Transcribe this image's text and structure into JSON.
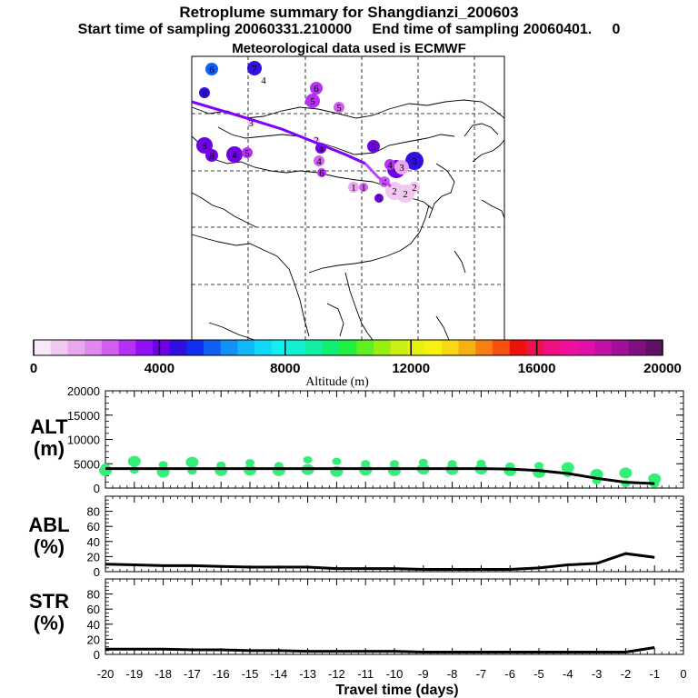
{
  "title": {
    "line1": "Retroplume summary for Shangdianzi_200603",
    "line2": "Start time of sampling 20060331.210000     End time of sampling 20060401.     0",
    "line3": "Meteorological data used is ECMWF"
  },
  "colors": {
    "trajectory": "#7f00ff",
    "trajectory_tail": "#c040ff",
    "scatter_points": "#33ee77",
    "line": "#000000"
  },
  "colorbar": {
    "label": "Altitude (m)",
    "range": [
      0,
      20000
    ],
    "ticks": [
      "0",
      "4000",
      "8000",
      "12000",
      "16000",
      "20000"
    ],
    "colors": [
      "#f8e8f8",
      "#f0c8f0",
      "#e8a8f0",
      "#e088f0",
      "#d060f0",
      "#b830f8",
      "#9010f8",
      "#7000e8",
      "#3010e0",
      "#1030f0",
      "#1060f8",
      "#1090f8",
      "#10b8f8",
      "#10d8f8",
      "#10f0f0",
      "#10f0d0",
      "#10f0a0",
      "#10f070",
      "#20f040",
      "#60f020",
      "#98f010",
      "#c8f010",
      "#e8f010",
      "#f8f010",
      "#f8d810",
      "#f8b010",
      "#f88010",
      "#f85010",
      "#f01010",
      "#f01050",
      "#f01080",
      "#f010a0",
      "#e010a8",
      "#c010a8",
      "#a01098",
      "#801080",
      "#601068"
    ]
  },
  "map": {
    "plume_labels": [
      {
        "text": "6",
        "alt": 5500
      },
      {
        "text": "7",
        "alt": 4800
      },
      {
        "text": "4",
        "alt": 4200
      },
      {
        "text": "6",
        "alt": 4500
      },
      {
        "text": "6",
        "alt": 3000
      },
      {
        "text": "5",
        "alt": 3200
      },
      {
        "text": "5",
        "alt": 2500
      },
      {
        "text": "8",
        "alt": 4300
      },
      {
        "text": "8",
        "alt": 4100
      },
      {
        "text": "4",
        "alt": 4000
      },
      {
        "text": "5",
        "alt": 2800
      },
      {
        "text": "4",
        "alt": 4200
      },
      {
        "text": "4",
        "alt": 2600
      },
      {
        "text": "6",
        "alt": 3000
      },
      {
        "text": "5",
        "alt": 3900
      },
      {
        "text": "3",
        "alt": 4400
      },
      {
        "text": "6",
        "alt": 4300
      },
      {
        "text": "4",
        "alt": 2800
      },
      {
        "text": "1",
        "alt": 1500
      },
      {
        "text": "1",
        "alt": 2400
      },
      {
        "text": "3",
        "alt": 1200
      },
      {
        "text": "4",
        "alt": 2500
      },
      {
        "text": "5",
        "alt": 4100
      },
      {
        "text": "2",
        "alt": 900
      },
      {
        "text": "2",
        "alt": 700
      },
      {
        "text": "2",
        "alt": 800
      },
      {
        "text": "2",
        "alt": 1000
      },
      {
        "text": "3",
        "alt": 600
      }
    ]
  },
  "chart_data": [
    {
      "type": "line",
      "panel": "ALT",
      "ylabel": "ALT (m)",
      "ylim": [
        0,
        20000
      ],
      "yticks": [
        0,
        5000,
        10000,
        15000,
        20000
      ],
      "xlim": [
        -20,
        0
      ],
      "x": [
        -20,
        -19,
        -18,
        -17,
        -16,
        -15,
        -14,
        -13,
        -12,
        -11,
        -10,
        -9,
        -8,
        -7,
        -6,
        -5,
        -4,
        -3,
        -2,
        -1
      ],
      "series": [
        {
          "name": "mean altitude",
          "values": [
            4000,
            4000,
            4000,
            4000,
            4000,
            4000,
            4000,
            4000,
            4000,
            4000,
            4000,
            4000,
            4000,
            4000,
            3900,
            3600,
            3000,
            2000,
            1200,
            900
          ]
        },
        {
          "name": "clusters",
          "scatter": [
            {
              "x": -20,
              "y": 3600
            },
            {
              "x": -20,
              "y": 4300
            },
            {
              "x": -19,
              "y": 5500
            },
            {
              "x": -19,
              "y": 3700
            },
            {
              "x": -18,
              "y": 3300
            },
            {
              "x": -18,
              "y": 4800
            },
            {
              "x": -17,
              "y": 5300
            },
            {
              "x": -17,
              "y": 3500
            },
            {
              "x": -16,
              "y": 3600
            },
            {
              "x": -16,
              "y": 4700
            },
            {
              "x": -15,
              "y": 3700
            },
            {
              "x": -15,
              "y": 5200
            },
            {
              "x": -14,
              "y": 3600
            },
            {
              "x": -14,
              "y": 4600
            },
            {
              "x": -13,
              "y": 3800
            },
            {
              "x": -13,
              "y": 5800
            },
            {
              "x": -12,
              "y": 3400
            },
            {
              "x": -12,
              "y": 5500
            },
            {
              "x": -11,
              "y": 3700
            },
            {
              "x": -11,
              "y": 5000
            },
            {
              "x": -10,
              "y": 3600
            },
            {
              "x": -10,
              "y": 5000
            },
            {
              "x": -9,
              "y": 3900
            },
            {
              "x": -9,
              "y": 5300
            },
            {
              "x": -8,
              "y": 3800
            },
            {
              "x": -8,
              "y": 5000
            },
            {
              "x": -7,
              "y": 3900
            },
            {
              "x": -7,
              "y": 5100
            },
            {
              "x": -6,
              "y": 3600
            },
            {
              "x": -6,
              "y": 4500
            },
            {
              "x": -5,
              "y": 3200
            },
            {
              "x": -5,
              "y": 4600
            },
            {
              "x": -4,
              "y": 4200
            },
            {
              "x": -4,
              "y": 3000
            },
            {
              "x": -3,
              "y": 2800
            },
            {
              "x": -3,
              "y": 1500
            },
            {
              "x": -2,
              "y": 3100
            },
            {
              "x": -2,
              "y": 900
            },
            {
              "x": -1,
              "y": 1900
            },
            {
              "x": -1,
              "y": 800
            }
          ]
        }
      ]
    },
    {
      "type": "line",
      "panel": "ABL",
      "ylabel": "ABL (%)",
      "ylim": [
        0,
        100
      ],
      "yticks": [
        0,
        20,
        40,
        60,
        80
      ],
      "xlim": [
        -20,
        0
      ],
      "x": [
        -20,
        -19,
        -18,
        -17,
        -16,
        -15,
        -14,
        -13,
        -12,
        -11,
        -10,
        -9,
        -8,
        -7,
        -6,
        -5,
        -4,
        -3,
        -2,
        -1
      ],
      "series": [
        {
          "name": "ABL fraction",
          "values": [
            10,
            9,
            8,
            8,
            7,
            6,
            6,
            6,
            4,
            4,
            4,
            3,
            3,
            3,
            3,
            5,
            9,
            11,
            24,
            19
          ]
        }
      ]
    },
    {
      "type": "line",
      "panel": "STR",
      "ylabel": "STR (%)",
      "ylim": [
        0,
        100
      ],
      "yticks": [
        0,
        20,
        40,
        60,
        80
      ],
      "xlim": [
        -20,
        0
      ],
      "x": [
        -20,
        -19,
        -18,
        -17,
        -16,
        -15,
        -14,
        -13,
        -12,
        -11,
        -10,
        -9,
        -8,
        -7,
        -6,
        -5,
        -4,
        -3,
        -2,
        -1
      ],
      "series": [
        {
          "name": "STR fraction",
          "values": [
            7,
            7,
            7,
            6,
            6,
            5,
            5,
            4,
            4,
            4,
            4,
            3,
            3,
            3,
            3,
            3,
            3,
            3,
            3,
            9
          ]
        }
      ],
      "xlabel": "Travel time (days)",
      "xticks": [
        "-20",
        "-19",
        "-18",
        "-17",
        "-16",
        "-15",
        "-14",
        "-13",
        "-12",
        "-11",
        "-10",
        "-9",
        "-8",
        "-7",
        "-6",
        "-5",
        "-4",
        "-3",
        "-2",
        "-1",
        "0"
      ]
    }
  ]
}
